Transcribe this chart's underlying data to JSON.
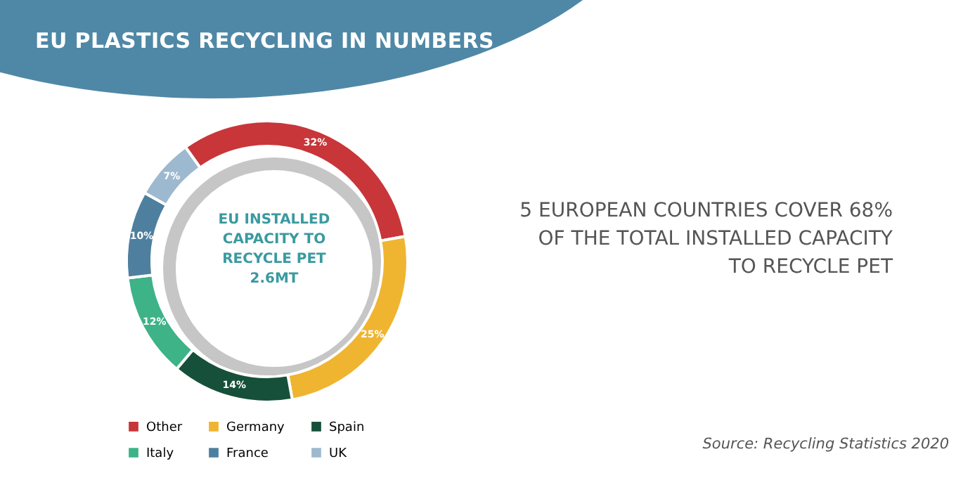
{
  "chart_data": {
    "type": "donut",
    "title": "EU PLASTICS RECYCLING IN NUMBERS",
    "categories": [
      "Other",
      "Germany",
      "Spain",
      "Italy",
      "France",
      "UK"
    ],
    "values": [
      32,
      25,
      14,
      12,
      10,
      7
    ],
    "value_labels": [
      "32%",
      "25%",
      "14%",
      "12%",
      "10%",
      "7%"
    ],
    "colors": [
      "#c8363a",
      "#efb531",
      "#16503a",
      "#3db387",
      "#4e7f9e",
      "#9db9cf"
    ],
    "legend": "bottom",
    "annotations": [
      "EU INSTALLED CAPACITY TO RECYCLE PET 2.6MT",
      "5 EUROPEAN COUNTRIES COVER 68% OF THE TOTAL INSTALLED CAPACITY TO RECYCLE PET",
      "Source: Recycling Statistics 2020"
    ]
  }
}
